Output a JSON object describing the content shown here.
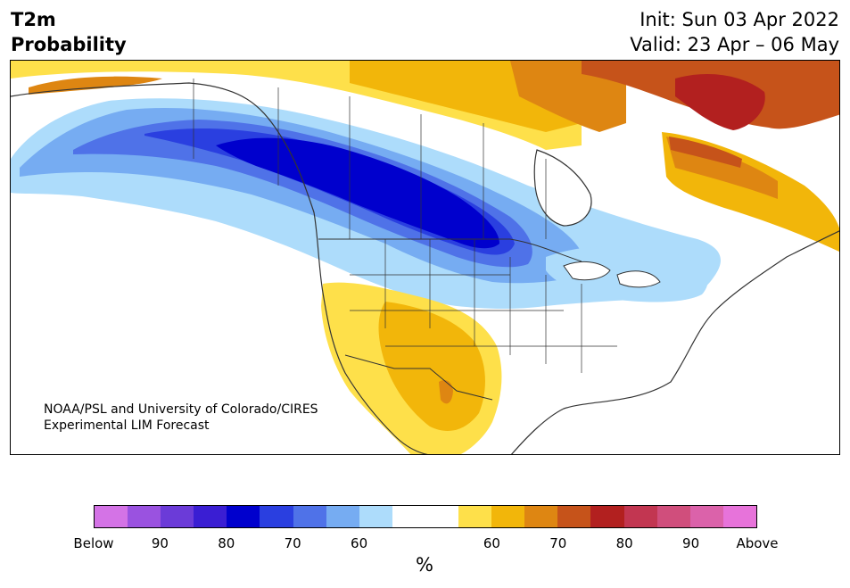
{
  "header": {
    "title_line1": "T2m",
    "title_line2": "Probability",
    "init": "Init: Sun 03 Apr 2022",
    "valid": "Valid: 23 Apr – 06 May"
  },
  "credit": {
    "line1": "NOAA/PSL and University of Colorado/CIRES",
    "line2": "Experimental LIM Forecast"
  },
  "colorbar": {
    "colors": [
      "#d473e6",
      "#9a52e0",
      "#6b3bd8",
      "#3a1ed3",
      "#0000cd",
      "#2a3fe0",
      "#4f72e8",
      "#76acf2",
      "#addcfb",
      "#ffffff",
      "#ffffff",
      "#fee04a",
      "#f2b60a",
      "#de8612",
      "#c6531a",
      "#b2201f",
      "#c23651",
      "#d04e7c",
      "#db62aa",
      "#e773da"
    ],
    "tick_labels": [
      "Below",
      "90",
      "80",
      "70",
      "60",
      "60",
      "70",
      "80",
      "90",
      "Above"
    ],
    "unit": "%"
  },
  "map": {
    "colors": {
      "cold_60": "#addcfb",
      "cold_70": "#76acf2",
      "cold_80": "#4f72e8",
      "cold_85": "#2a3fe0",
      "cold_90": "#0000cd",
      "warm_60": "#fee04a",
      "warm_65": "#f2b60a",
      "warm_70": "#de8612",
      "warm_75": "#c6531a",
      "warm_80": "#b2201f",
      "land_outline": "#333333"
    }
  }
}
